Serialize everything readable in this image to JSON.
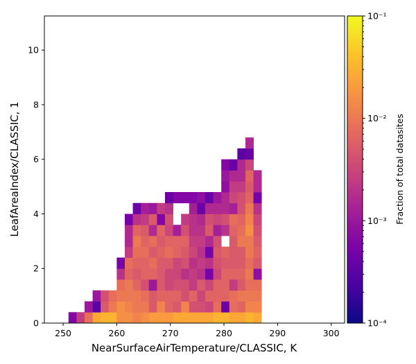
{
  "chart_data": {
    "type": "heatmap",
    "xlabel": "NearSurfaceAirTemperature/CLASSIC,  K",
    "ylabel": "LeafAreaIndex/CLASSIC,  1",
    "xlim": [
      246.5,
      302.5
    ],
    "ylim": [
      0,
      11.25
    ],
    "xticks": [
      250,
      260,
      270,
      280,
      290,
      300
    ],
    "yticks": [
      0,
      2,
      4,
      6,
      8,
      10
    ],
    "x_bin_start": 251,
    "x_bin_width": 1.5,
    "y_bin_width": 0.4,
    "colorbar": {
      "label": "Fraction of total datasites",
      "scale": "log",
      "range": [
        0.0001,
        0.1
      ],
      "tick_labels": [
        "10⁻¹",
        "10⁻²",
        "10⁻³",
        "10⁻⁴"
      ],
      "colormap": "plasma"
    },
    "cells_note": "rows[r][c]: log10(fraction) for y-bin r (0 = lowest) and x-bin c; null = empty",
    "rows": [
      [
        -3.2,
        -2.6,
        -2.1,
        -1.6,
        -1.5,
        -1.5,
        -1.8,
        -1.8,
        -1.9,
        -1.8,
        -1.7,
        -1.7,
        -1.7,
        -1.6,
        -1.6,
        -1.6,
        -1.6,
        -1.6,
        -1.5,
        -1.5,
        -1.6,
        -1.6,
        -1.5,
        -1.6
      ],
      [
        null,
        null,
        -3.0,
        -3.5,
        -2.3,
        -2.0,
        -1.8,
        -1.9,
        -2.0,
        -2.0,
        -2.3,
        -1.9,
        -2.2,
        -2.3,
        -1.9,
        -2.4,
        -2.4,
        -2.5,
        -2.1,
        -3.4,
        -2.1,
        -2.2,
        -1.9,
        -1.9
      ],
      [
        null,
        null,
        null,
        -3.0,
        -2.4,
        -2.1,
        -2.0,
        -2.0,
        -2.0,
        -2.1,
        -2.3,
        -2.2,
        -2.2,
        -2.2,
        -2.4,
        -2.2,
        -2.5,
        -2.2,
        -2.2,
        -2.2,
        -2.1,
        -2.0,
        -2.0,
        -2.0
      ],
      [
        null,
        null,
        null,
        null,
        null,
        null,
        -2.1,
        -2.0,
        -2.2,
        -2.4,
        -3.0,
        -2.3,
        -2.5,
        -2.4,
        -2.4,
        -2.6,
        -2.3,
        -2.5,
        -2.2,
        -2.2,
        -2.6,
        -2.3,
        -2.1,
        -2.1
      ],
      [
        null,
        null,
        null,
        null,
        null,
        null,
        -2.7,
        -2.2,
        -2.3,
        -2.2,
        -2.2,
        -2.3,
        -2.5,
        -2.5,
        -2.7,
        -2.6,
        -2.7,
        -3.3,
        -2.5,
        -2.2,
        -2.2,
        -2.2,
        -2.0,
        -3.1
      ],
      [
        null,
        null,
        null,
        null,
        null,
        null,
        -3.3,
        -2.1,
        -2.2,
        -2.2,
        -2.1,
        -2.3,
        -2.3,
        -2.5,
        -2.4,
        -2.7,
        -2.6,
        -2.7,
        -2.4,
        -2.3,
        -2.3,
        -2.3,
        -2.1,
        -2.3
      ],
      [
        null,
        null,
        null,
        null,
        null,
        null,
        null,
        -2.6,
        -2.1,
        -2.1,
        -2.3,
        -2.2,
        -2.1,
        -2.2,
        -2.3,
        -2.5,
        -2.7,
        -3.3,
        -2.3,
        -2.2,
        -2.3,
        -2.3,
        -2.0,
        -2.2
      ],
      [
        null,
        null,
        null,
        null,
        null,
        null,
        null,
        -2.8,
        -2.0,
        -2.2,
        -2.1,
        -2.3,
        -2.2,
        -2.2,
        -2.2,
        -2.6,
        -2.6,
        -2.8,
        -2.4,
        null,
        -2.3,
        -2.0,
        -2.0,
        -2.3
      ],
      [
        null,
        null,
        null,
        null,
        null,
        null,
        null,
        -2.8,
        -2.2,
        -2.3,
        -2.8,
        -2.2,
        -2.5,
        -2.9,
        -2.4,
        -2.7,
        -2.7,
        -2.3,
        -2.9,
        -2.7,
        -2.2,
        -2.1,
        -1.8,
        -2.4
      ],
      [
        null,
        null,
        null,
        null,
        null,
        null,
        null,
        -3.3,
        -2.7,
        -2.6,
        -2.3,
        -3.2,
        -2.4,
        null,
        -2.6,
        -2.7,
        -2.8,
        -2.4,
        -2.5,
        -2.4,
        -2.1,
        -2.2,
        -1.9,
        -2.5
      ],
      [
        null,
        null,
        null,
        null,
        null,
        null,
        null,
        null,
        -3.4,
        -2.9,
        -3.0,
        -2.6,
        -2.7,
        null,
        null,
        -2.9,
        -3.4,
        -2.8,
        -2.8,
        -2.8,
        -2.9,
        -2.4,
        -2.0,
        -2.7
      ],
      [
        null,
        null,
        null,
        null,
        null,
        null,
        null,
        null,
        null,
        null,
        null,
        null,
        -3.4,
        -3.2,
        -3.2,
        -3.2,
        -3.1,
        -3.4,
        -3.0,
        -2.8,
        -2.5,
        -2.4,
        -2.2,
        -3.3
      ],
      [
        null,
        null,
        null,
        null,
        null,
        null,
        null,
        null,
        null,
        null,
        null,
        null,
        null,
        null,
        null,
        null,
        null,
        null,
        null,
        -3.1,
        -2.6,
        -2.6,
        -2.3,
        -2.8
      ],
      [
        null,
        null,
        null,
        null,
        null,
        null,
        null,
        null,
        null,
        null,
        null,
        null,
        null,
        null,
        null,
        null,
        null,
        null,
        null,
        -3.0,
        -2.8,
        -2.8,
        -2.2,
        -2.8
      ],
      [
        null,
        null,
        null,
        null,
        null,
        null,
        null,
        null,
        null,
        null,
        null,
        null,
        null,
        null,
        null,
        null,
        null,
        null,
        null,
        -3.2,
        -3.4,
        -2.8,
        -2.5,
        null
      ],
      [
        null,
        null,
        null,
        null,
        null,
        null,
        null,
        null,
        null,
        null,
        null,
        null,
        null,
        null,
        null,
        null,
        null,
        null,
        null,
        null,
        null,
        -3.5,
        -3.4,
        null
      ],
      [
        null,
        null,
        null,
        null,
        null,
        null,
        null,
        null,
        null,
        null,
        null,
        null,
        null,
        null,
        null,
        null,
        null,
        null,
        null,
        null,
        null,
        null,
        -2.8,
        null
      ]
    ]
  }
}
